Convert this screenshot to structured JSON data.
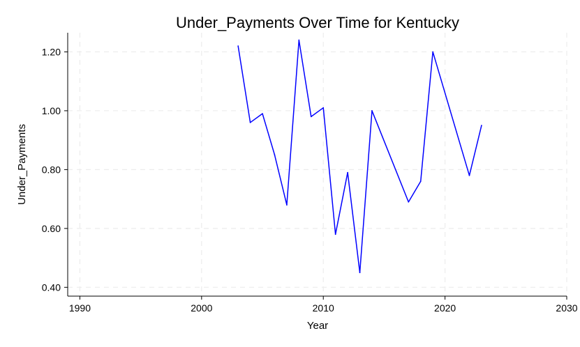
{
  "chart_data": {
    "type": "line",
    "title": "Under_Payments Over Time for Kentucky",
    "xlabel": "Year",
    "ylabel": "Under_Payments",
    "xlim": [
      1989,
      2030
    ],
    "ylim": [
      0.37,
      1.265
    ],
    "xticks": [
      1990,
      2000,
      2010,
      2020,
      2030
    ],
    "xtick_labels": [
      "1990",
      "2000",
      "2010",
      "2020",
      "2030"
    ],
    "yticks": [
      0.4,
      0.6,
      0.8,
      1.0,
      1.2
    ],
    "ytick_labels": [
      "0.40",
      "0.60",
      "0.80",
      "1.00",
      "1.20"
    ],
    "grid": true,
    "legend": "none",
    "series": [
      {
        "color": "#0000ff",
        "x": [
          2003,
          2004,
          2005,
          2006,
          2007,
          2008,
          2009,
          2010,
          2011,
          2012,
          2013,
          2014,
          2017,
          2018,
          2019,
          2022,
          2023
        ],
        "values": [
          1.22,
          0.96,
          0.99,
          0.85,
          0.68,
          1.24,
          0.98,
          1.01,
          0.58,
          0.79,
          0.45,
          1.0,
          0.69,
          0.76,
          1.2,
          0.78,
          0.95
        ]
      }
    ]
  }
}
